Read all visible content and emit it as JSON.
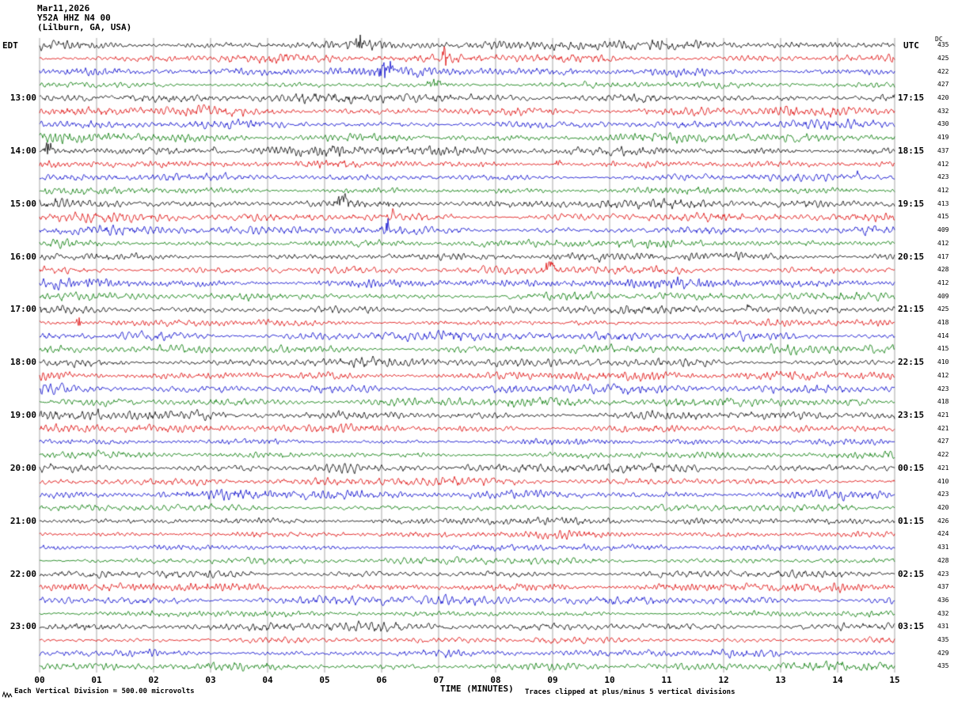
{
  "title": {
    "date": "Mar11,2026",
    "station": "Y52A HHZ N4 00",
    "location": "(Lilburn, GA, USA)"
  },
  "axes": {
    "left_header": "EDT",
    "right_header": "UTC",
    "dc_header": "DC",
    "x_label": "TIME (MINUTES)",
    "x_ticks": [
      "00",
      "01",
      "02",
      "03",
      "04",
      "05",
      "06",
      "07",
      "08",
      "09",
      "10",
      "11",
      "12",
      "13",
      "14",
      "15"
    ]
  },
  "footer": {
    "scale_note": "Each Vertical Division =  500.00 microvolts",
    "clip_note": "Traces clipped at plus/minus 5 vertical divisions"
  },
  "chart_data": {
    "type": "line",
    "subtype": "helicorder-seismogram",
    "station": "Y52A HHZ N4 00",
    "channel": "HHZ",
    "location_name": "Lilburn, GA, USA",
    "date": "Mar11,2026",
    "grid_color": "#7f7f7f",
    "background": "#ffffff",
    "x_axis": {
      "label": "TIME (MINUTES)",
      "min": 0,
      "max": 15,
      "tick_interval": 1
    },
    "rows": {
      "count": 48,
      "minutes_per_row": 15,
      "color_cycle": [
        "#000000",
        "#dd0000",
        "#0000cc",
        "#007700"
      ],
      "left_hour_labels": [
        "13:00",
        "14:00",
        "15:00",
        "16:00",
        "17:00",
        "18:00",
        "19:00",
        "20:00",
        "21:00",
        "22:00",
        "23:00"
      ],
      "right_hour_labels": [
        "17:15",
        "18:15",
        "19:15",
        "20:15",
        "21:15",
        "22:15",
        "23:15",
        "00:15",
        "01:15",
        "02:15",
        "03:15"
      ],
      "hour_label_rows": [
        4,
        8,
        12,
        16,
        20,
        24,
        28,
        32,
        36,
        40,
        44
      ],
      "dc_values": [
        435,
        425,
        422,
        427,
        420,
        432,
        430,
        419,
        437,
        412,
        423,
        412,
        413,
        415,
        409,
        412,
        417,
        428,
        412,
        409,
        425,
        418,
        414,
        415,
        410,
        412,
        423,
        418,
        421,
        421,
        427,
        422,
        421,
        410,
        423,
        420,
        426,
        424,
        431,
        428,
        423,
        437,
        436,
        432,
        431,
        435,
        429,
        435
      ]
    },
    "events": [
      {
        "row": 0,
        "minute": 5.62,
        "amp": 2.4,
        "width": 0.1
      },
      {
        "row": 1,
        "minute": 7.12,
        "amp": 5.0,
        "width": 0.05
      },
      {
        "row": 2,
        "minute": 6.08,
        "amp": 3.0,
        "width": 0.18
      },
      {
        "row": 3,
        "minute": 7.0,
        "amp": 1.2,
        "width": 0.2
      },
      {
        "row": 8,
        "minute": 0.15,
        "amp": 3.0,
        "width": 0.08
      },
      {
        "row": 8,
        "minute": 3.05,
        "amp": 2.0,
        "width": 0.04
      },
      {
        "row": 9,
        "minute": 9.1,
        "amp": 1.5,
        "width": 0.05
      },
      {
        "row": 10,
        "minute": 14.35,
        "amp": 2.0,
        "width": 0.03
      },
      {
        "row": 12,
        "minute": 5.3,
        "amp": 4.0,
        "width": 0.1
      },
      {
        "row": 12,
        "minute": 6.1,
        "amp": 2.0,
        "width": 0.04
      },
      {
        "row": 13,
        "minute": 6.2,
        "amp": 2.0,
        "width": 0.05
      },
      {
        "row": 14,
        "minute": 6.1,
        "amp": 3.0,
        "width": 0.03
      },
      {
        "row": 17,
        "minute": 8.95,
        "amp": 4.5,
        "width": 0.07
      },
      {
        "row": 20,
        "minute": 12.45,
        "amp": 1.8,
        "width": 0.05
      },
      {
        "row": 21,
        "minute": 0.7,
        "amp": 1.6,
        "width": 0.05
      },
      {
        "row": 28,
        "minute": 1.0,
        "amp": 1.4,
        "width": 0.06
      }
    ],
    "scale_note": "Each Vertical Division =  500.00 microvolts",
    "clip_note": "Traces clipped at plus/minus 5 vertical divisions"
  }
}
